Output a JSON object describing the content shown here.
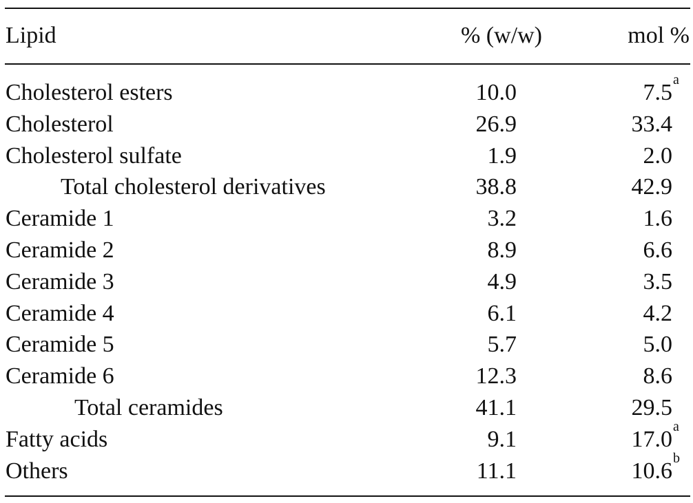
{
  "header": {
    "lipid": "Lipid",
    "ww": "% (w/w)",
    "mol": "mol %"
  },
  "rows": [
    {
      "name": "Cholesterol esters",
      "ww": "10.0",
      "mol": "7.5",
      "sup": "a",
      "indent": 0
    },
    {
      "name": "Cholesterol",
      "ww": "26.9",
      "mol": "33.4",
      "sup": "",
      "indent": 0
    },
    {
      "name": "Cholesterol sulfate",
      "ww": "1.9",
      "mol": "2.0",
      "sup": "",
      "indent": 0
    },
    {
      "name": "Total cholesterol derivatives",
      "ww": "38.8",
      "mol": "42.9",
      "sup": "",
      "indent": 1
    },
    {
      "name": "Ceramide 1",
      "ww": "3.2",
      "mol": "1.6",
      "sup": "",
      "indent": 0
    },
    {
      "name": "Ceramide 2",
      "ww": "8.9",
      "mol": "6.6",
      "sup": "",
      "indent": 0
    },
    {
      "name": "Ceramide 3",
      "ww": "4.9",
      "mol": "3.5",
      "sup": "",
      "indent": 0
    },
    {
      "name": "Ceramide 4",
      "ww": "6.1",
      "mol": "4.2",
      "sup": "",
      "indent": 0
    },
    {
      "name": "Ceramide 5",
      "ww": "5.7",
      "mol": "5.0",
      "sup": "",
      "indent": 0
    },
    {
      "name": "Ceramide 6",
      "ww": "12.3",
      "mol": "8.6",
      "sup": "",
      "indent": 0
    },
    {
      "name": "Total ceramides",
      "ww": "41.1",
      "mol": "29.5",
      "sup": "",
      "indent": 2
    },
    {
      "name": "Fatty acids",
      "ww": "9.1",
      "mol": "17.0",
      "sup": "a",
      "indent": 0
    },
    {
      "name": "Others",
      "ww": "11.1",
      "mol": "10.6",
      "sup": "b",
      "indent": 0
    }
  ]
}
